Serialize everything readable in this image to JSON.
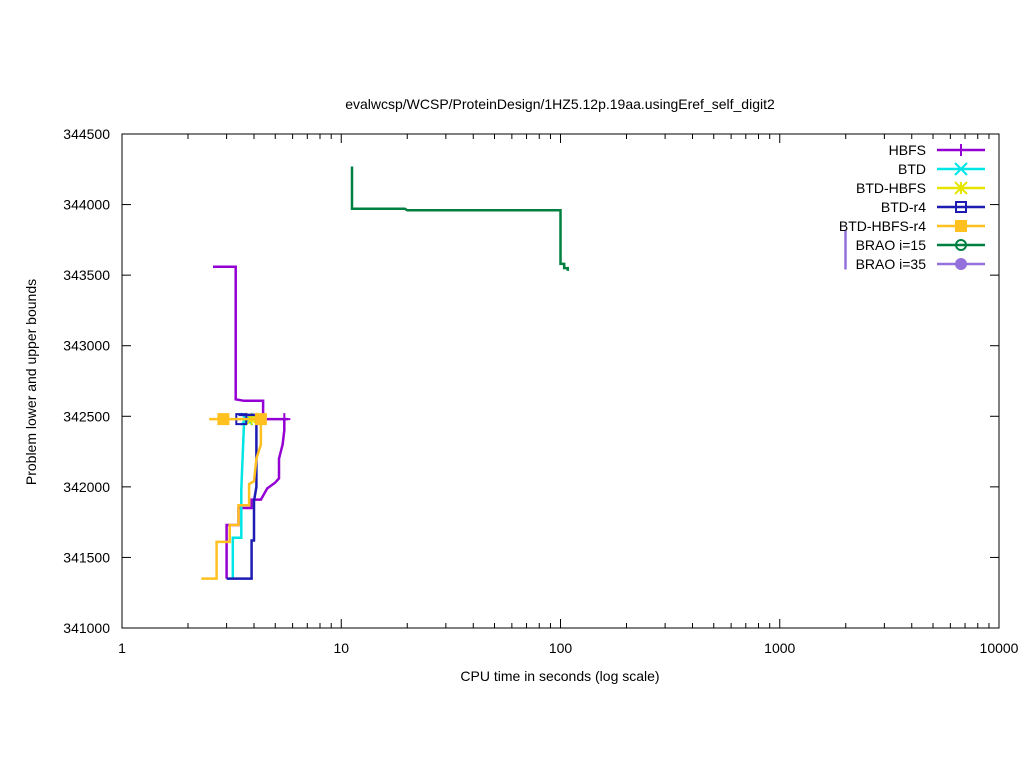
{
  "chart_data": {
    "type": "line",
    "title": "evalwcsp/WCSP/ProteinDesign/1HZ5.12p.19aa.usingEref_self_digit2",
    "xlabel": "CPU time in seconds (log scale)",
    "ylabel": "Problem lower and upper bounds",
    "xscale": "log",
    "xlim": [
      1,
      10000
    ],
    "ylim": [
      341000,
      344500
    ],
    "xticks": [
      1,
      10,
      100,
      1000,
      10000
    ],
    "xtick_labels": [
      "1",
      "10",
      "100",
      "1000",
      "10000"
    ],
    "yticks": [
      341000,
      341500,
      342000,
      342500,
      343000,
      343500,
      344000,
      344500
    ],
    "ytick_labels": [
      "341000",
      "341500",
      "342000",
      "342500",
      "343000",
      "343500",
      "344000",
      "344500"
    ],
    "grid": false,
    "legend_position": "top-right",
    "series": [
      {
        "name": "HBFS",
        "color": "#9400d3",
        "marker": "plus",
        "upper": [
          [
            2.6,
            343560
          ],
          [
            3.3,
            343560
          ],
          [
            3.3,
            342620
          ],
          [
            3.6,
            342610
          ],
          [
            4.4,
            342610
          ],
          [
            4.4,
            342480
          ],
          [
            5.7,
            342480
          ]
        ],
        "lower": [
          [
            3.0,
            341350
          ],
          [
            3.0,
            341730
          ],
          [
            3.4,
            341730
          ],
          [
            3.4,
            341850
          ],
          [
            3.9,
            341850
          ],
          [
            3.9,
            341910
          ],
          [
            4.3,
            341910
          ],
          [
            4.6,
            341990
          ],
          [
            5.0,
            342030
          ],
          [
            5.2,
            342060
          ],
          [
            5.2,
            342200
          ],
          [
            5.4,
            342300
          ],
          [
            5.5,
            342400
          ],
          [
            5.5,
            342480
          ]
        ],
        "markers": [
          [
            5.5,
            342480
          ]
        ]
      },
      {
        "name": "BTD",
        "color": "#00e5e5",
        "marker": "cross",
        "upper": [
          [
            3.5,
            342480
          ],
          [
            4.0,
            342480
          ]
        ],
        "lower": [
          [
            3.2,
            341350
          ],
          [
            3.2,
            341640
          ],
          [
            3.5,
            341640
          ],
          [
            3.5,
            341980
          ],
          [
            3.6,
            342450
          ],
          [
            3.6,
            342480
          ]
        ],
        "markers": [
          [
            3.7,
            342480
          ]
        ]
      },
      {
        "name": "BTD-HBFS",
        "color": "#e5e500",
        "marker": "star",
        "upper": [],
        "lower": [],
        "markers": [
          [
            3.9,
            342480
          ]
        ]
      },
      {
        "name": "BTD-r4",
        "color": "#1c1cb4",
        "marker": "square-open",
        "upper": [
          [
            3.4,
            342510
          ],
          [
            4.4,
            342510
          ]
        ],
        "lower": [
          [
            3.0,
            341350
          ],
          [
            3.9,
            341350
          ],
          [
            3.9,
            341620
          ],
          [
            4.0,
            341620
          ],
          [
            4.0,
            341900
          ],
          [
            4.1,
            342000
          ],
          [
            4.1,
            342480
          ]
        ],
        "markers": [
          [
            3.5,
            342480
          ]
        ]
      },
      {
        "name": "BTD-HBFS-r4",
        "color": "#ffc020",
        "marker": "square-filled",
        "upper": [
          [
            2.5,
            342480
          ],
          [
            4.4,
            342480
          ]
        ],
        "lower": [
          [
            2.3,
            341350
          ],
          [
            2.7,
            341350
          ],
          [
            2.7,
            341610
          ],
          [
            3.1,
            341610
          ],
          [
            3.1,
            341730
          ],
          [
            3.4,
            341730
          ],
          [
            3.4,
            341870
          ],
          [
            3.8,
            341870
          ],
          [
            3.8,
            342020
          ],
          [
            4.0,
            342040
          ],
          [
            4.1,
            342200
          ],
          [
            4.3,
            342300
          ],
          [
            4.3,
            342480
          ]
        ],
        "markers": [
          [
            2.9,
            342480
          ],
          [
            4.3,
            342480
          ]
        ]
      },
      {
        "name": "BRAO i=15",
        "color": "#008040",
        "marker": "circle-open",
        "upper": [
          [
            11.2,
            344270
          ],
          [
            11.2,
            343970
          ],
          [
            19.5,
            343970
          ],
          [
            20.0,
            343960
          ],
          [
            100,
            343960
          ],
          [
            100,
            343580
          ],
          [
            104,
            343580
          ],
          [
            104,
            343550
          ],
          [
            108,
            343550
          ],
          [
            108,
            343530
          ]
        ],
        "lower": [],
        "markers": []
      },
      {
        "name": "BRAO i=35",
        "color": "#9370db",
        "marker": "circle-filled",
        "upper": [
          [
            1995,
            343820
          ],
          [
            1995,
            343540
          ]
        ],
        "lower": [],
        "markers": []
      }
    ]
  }
}
